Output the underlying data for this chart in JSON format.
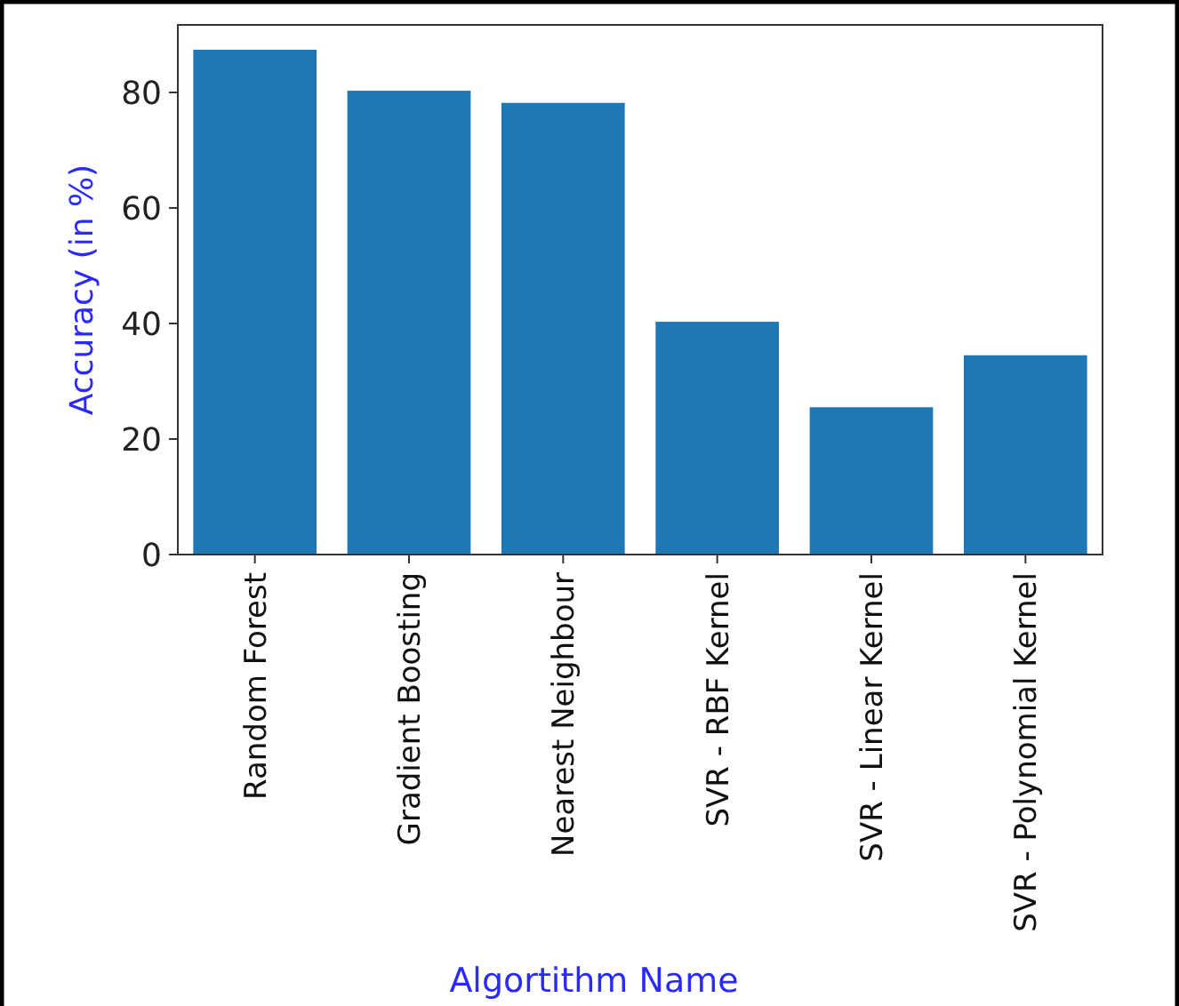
{
  "chart_data": {
    "type": "bar",
    "xlabel": "Algortithm Name",
    "ylabel": "Accuracy (in %)",
    "categories": [
      "Random Forest",
      "Gradient Boosting",
      "Nearest Neighbour",
      "SVR - RBF Kernel",
      "SVR - Linear Kernel",
      "SVR - Polynomial Kernel"
    ],
    "values": [
      87.4,
      80.3,
      78.2,
      40.3,
      25.5,
      34.5
    ],
    "color": "#1f77b4",
    "ylim": [
      0,
      91.7
    ],
    "yticks": [
      0,
      20,
      40,
      60,
      80
    ],
    "grid": false
  }
}
